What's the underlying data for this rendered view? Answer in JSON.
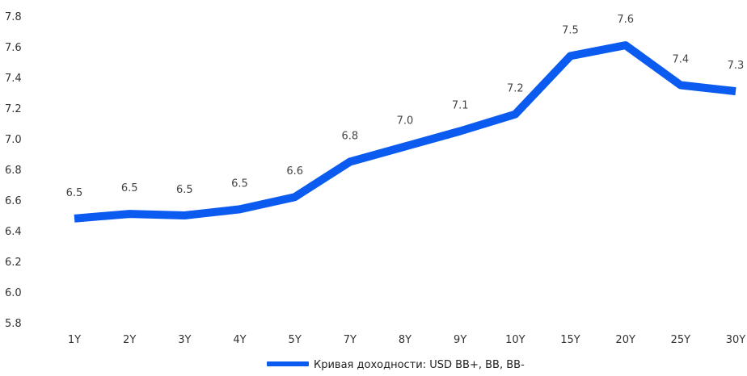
{
  "chart_data": {
    "type": "line",
    "title": "",
    "xlabel": "",
    "ylabel": "",
    "categories": [
      "1Y",
      "2Y",
      "3Y",
      "4Y",
      "5Y",
      "7Y",
      "8Y",
      "9Y",
      "10Y",
      "15Y",
      "20Y",
      "25Y",
      "30Y"
    ],
    "series": [
      {
        "name": "Кривая доходности: USD BB+, BB, BB-",
        "values": [
          6.48,
          6.51,
          6.5,
          6.54,
          6.62,
          6.85,
          6.95,
          7.05,
          7.16,
          7.54,
          7.61,
          7.35,
          7.31
        ],
        "labels": [
          "6.5",
          "6.5",
          "6.5",
          "6.5",
          "6.6",
          "6.8",
          "7.0",
          "7.1",
          "7.2",
          "7.5",
          "7.6",
          "7.4",
          "7.3"
        ],
        "color": "#0B5BF0"
      }
    ],
    "yticks": [
      "5.8",
      "6.0",
      "6.2",
      "6.4",
      "6.6",
      "6.8",
      "7.0",
      "7.2",
      "7.4",
      "7.6",
      "7.8"
    ],
    "ylim": [
      5.8,
      7.8
    ],
    "grid": false,
    "legend": "bottom-center"
  }
}
